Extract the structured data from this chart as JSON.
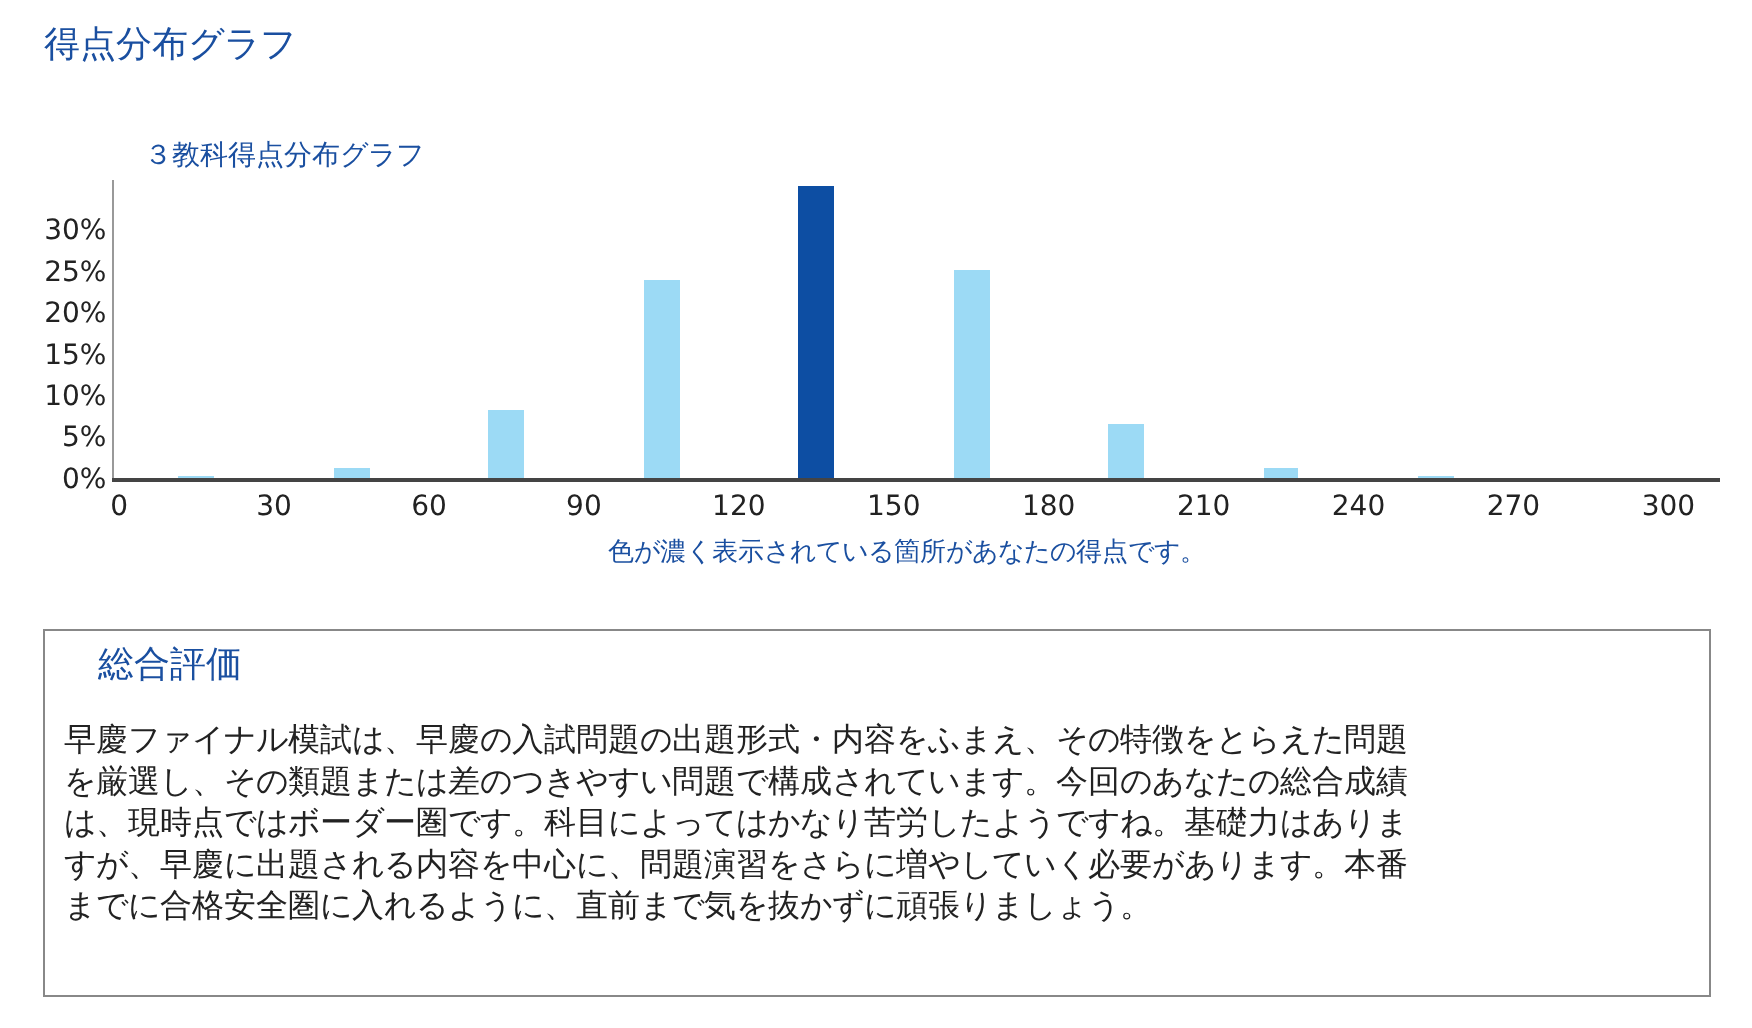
{
  "chart_data": {
    "type": "histogram",
    "title": "得点分布グラフ",
    "subtitle": "３教科得点分布グラフ",
    "xlabel": "色が濃く表示されている箇所があなたの得点です。",
    "bins": [
      0,
      30,
      60,
      90,
      120,
      150,
      180,
      210,
      240,
      270,
      300
    ],
    "values": [
      0.1,
      1.3,
      8.2,
      23.9,
      35.3,
      25.1,
      6.5,
      1.3,
      0.1,
      0
    ],
    "colors": [
      "#9cdaf5",
      "#9cdaf5",
      "#9cdaf5",
      "#9cdaf5",
      "#0d4ea3",
      "#9cdaf5",
      "#9cdaf5",
      "#9cdaf5",
      "#9cdaf5",
      "#9cdaf5"
    ],
    "xlim": [
      -1,
      310
    ],
    "xticks": [
      0,
      30,
      60,
      90,
      120,
      150,
      180,
      210,
      240,
      270,
      300
    ],
    "ylim": [
      0,
      36
    ],
    "yticks": [
      {
        "value": 0,
        "label": "0%"
      },
      {
        "value": 5,
        "label": "5%"
      },
      {
        "value": 10,
        "label": "10%"
      },
      {
        "value": 15,
        "label": "15%"
      },
      {
        "value": 20,
        "label": "20%"
      },
      {
        "value": 25,
        "label": "25%"
      },
      {
        "value": 30,
        "label": "30%"
      }
    ],
    "annotations": [
      "総合評価",
      "早慶ファイナル模試は、早慶の入試問題の出題形式・内容をふまえ、その特徴をとらえた問題を厳選し、その類題または差のつきやすい問題で構成されています。今回のあなたの総合成績は、現時点ではボーダー圏です。科目によってはかなり苦労したようですね。基礎力はありますが、早慶に出題される内容を中心に、問題演習をさらに増やしていく必要があります。本番までに合格安全圏に入れるように、直前まで気を抜かずに頑張りましょう。"
    ]
  }
}
